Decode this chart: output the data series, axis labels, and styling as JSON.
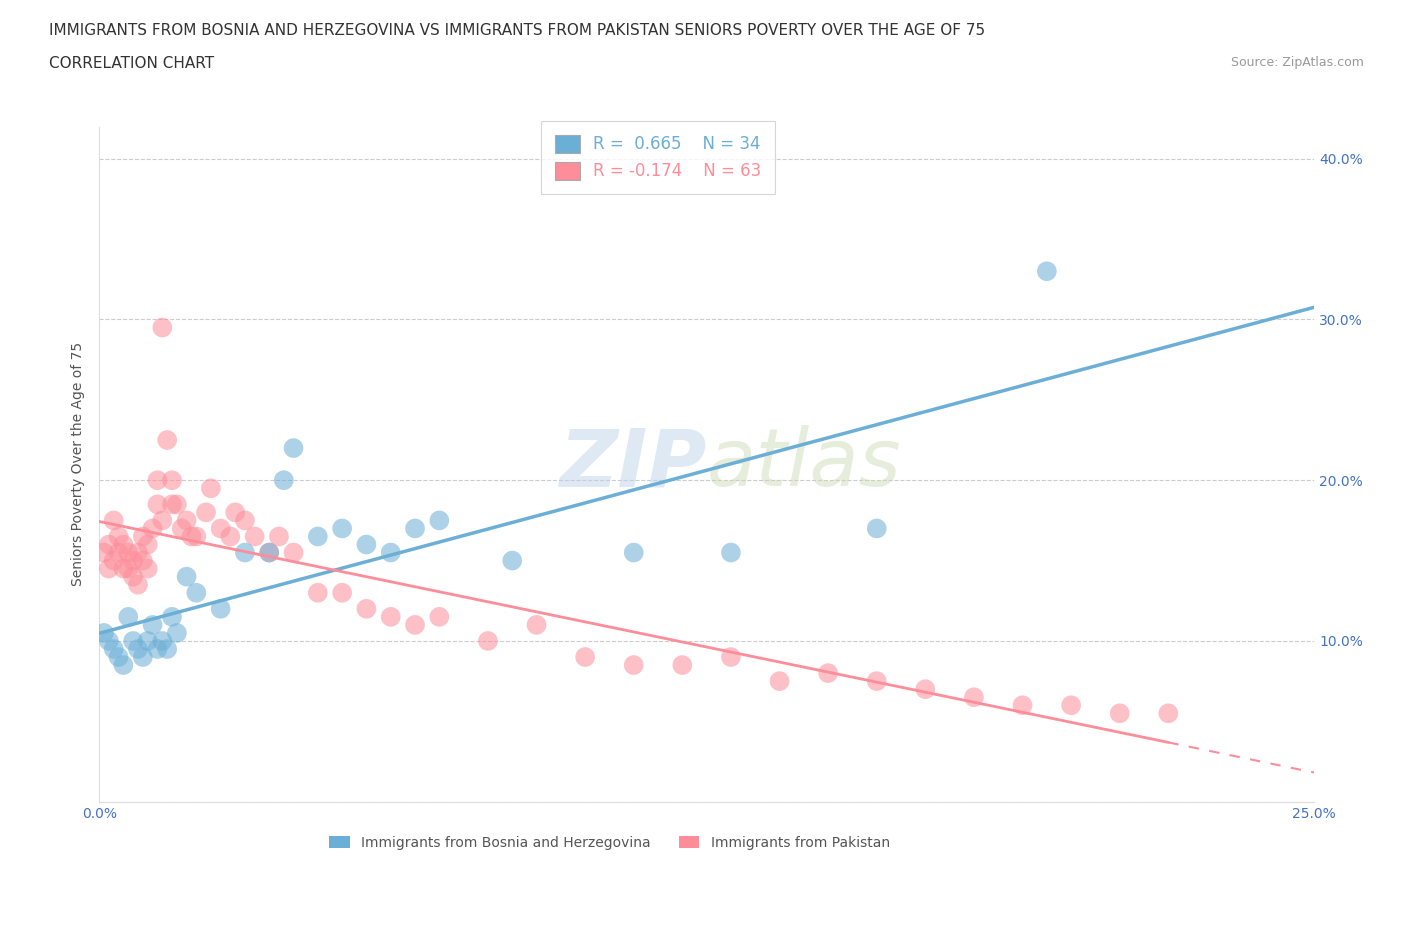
{
  "title_line1": "IMMIGRANTS FROM BOSNIA AND HERZEGOVINA VS IMMIGRANTS FROM PAKISTAN SENIORS POVERTY OVER THE AGE OF 75",
  "title_line2": "CORRELATION CHART",
  "source_text": "Source: ZipAtlas.com",
  "ylabel": "Seniors Poverty Over the Age of 75",
  "xlim": [
    0.0,
    0.25
  ],
  "ylim": [
    0.0,
    0.42
  ],
  "xticks": [
    0.0,
    0.05,
    0.1,
    0.15,
    0.2,
    0.25
  ],
  "xticklabels": [
    "0.0%",
    "",
    "",
    "",
    "",
    "25.0%"
  ],
  "yticks": [
    0.0,
    0.1,
    0.2,
    0.3,
    0.4
  ],
  "yticklabels": [
    "",
    "10.0%",
    "20.0%",
    "30.0%",
    "40.0%"
  ],
  "bosnia_color": "#6baed6",
  "pakistan_color": "#fc8d99",
  "bosnia_R": 0.665,
  "bosnia_N": 34,
  "pakistan_R": -0.174,
  "pakistan_N": 63,
  "watermark": "ZIPatlas",
  "bosnia_scatter_x": [
    0.001,
    0.002,
    0.003,
    0.004,
    0.005,
    0.006,
    0.007,
    0.008,
    0.009,
    0.01,
    0.011,
    0.012,
    0.013,
    0.014,
    0.015,
    0.016,
    0.018,
    0.02,
    0.025,
    0.03,
    0.035,
    0.038,
    0.04,
    0.045,
    0.05,
    0.055,
    0.06,
    0.065,
    0.07,
    0.085,
    0.11,
    0.13,
    0.16,
    0.195
  ],
  "bosnia_scatter_y": [
    0.105,
    0.1,
    0.095,
    0.09,
    0.085,
    0.115,
    0.1,
    0.095,
    0.09,
    0.1,
    0.11,
    0.095,
    0.1,
    0.095,
    0.115,
    0.105,
    0.14,
    0.13,
    0.12,
    0.155,
    0.155,
    0.2,
    0.22,
    0.165,
    0.17,
    0.16,
    0.155,
    0.17,
    0.175,
    0.15,
    0.155,
    0.155,
    0.17,
    0.33
  ],
  "pakistan_scatter_x": [
    0.001,
    0.002,
    0.002,
    0.003,
    0.003,
    0.004,
    0.004,
    0.005,
    0.005,
    0.006,
    0.006,
    0.007,
    0.007,
    0.008,
    0.008,
    0.009,
    0.009,
    0.01,
    0.01,
    0.011,
    0.012,
    0.012,
    0.013,
    0.013,
    0.014,
    0.015,
    0.015,
    0.016,
    0.017,
    0.018,
    0.019,
    0.02,
    0.022,
    0.023,
    0.025,
    0.027,
    0.028,
    0.03,
    0.032,
    0.035,
    0.037,
    0.04,
    0.045,
    0.05,
    0.055,
    0.06,
    0.065,
    0.07,
    0.08,
    0.09,
    0.1,
    0.11,
    0.12,
    0.13,
    0.14,
    0.15,
    0.16,
    0.17,
    0.18,
    0.19,
    0.2,
    0.21,
    0.22
  ],
  "pakistan_scatter_y": [
    0.155,
    0.16,
    0.145,
    0.15,
    0.175,
    0.155,
    0.165,
    0.145,
    0.16,
    0.145,
    0.155,
    0.14,
    0.15,
    0.135,
    0.155,
    0.15,
    0.165,
    0.145,
    0.16,
    0.17,
    0.2,
    0.185,
    0.295,
    0.175,
    0.225,
    0.185,
    0.2,
    0.185,
    0.17,
    0.175,
    0.165,
    0.165,
    0.18,
    0.195,
    0.17,
    0.165,
    0.18,
    0.175,
    0.165,
    0.155,
    0.165,
    0.155,
    0.13,
    0.13,
    0.12,
    0.115,
    0.11,
    0.115,
    0.1,
    0.11,
    0.09,
    0.085,
    0.085,
    0.09,
    0.075,
    0.08,
    0.075,
    0.07,
    0.065,
    0.06,
    0.06,
    0.055,
    0.055
  ],
  "background_color": "#ffffff",
  "grid_color": "#cccccc",
  "title_fontsize": 11,
  "axis_label_fontsize": 10,
  "tick_fontsize": 10,
  "legend_fontsize": 12
}
